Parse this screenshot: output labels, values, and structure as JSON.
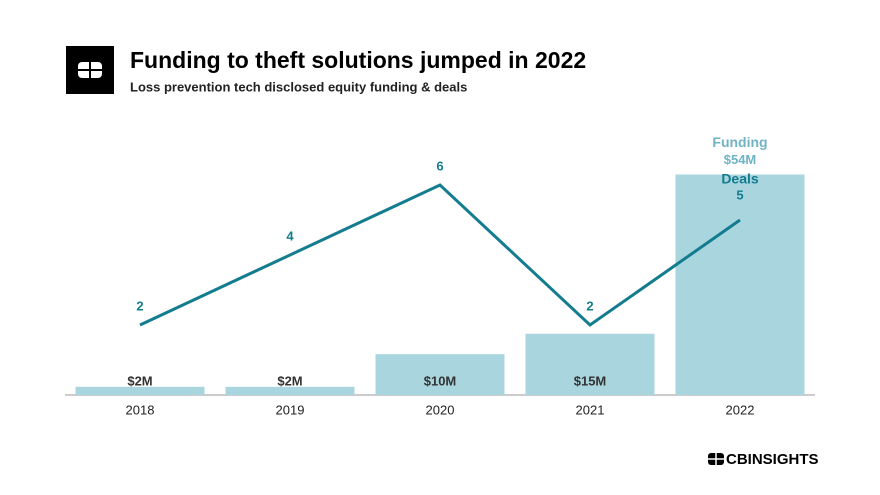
{
  "chart_data": {
    "type": "bar-line",
    "title": "Funding to theft solutions jumped in 2022",
    "subtitle": "Loss prevention tech disclosed equity funding & deals",
    "categories": [
      "2018",
      "2019",
      "2020",
      "2021",
      "2022"
    ],
    "series": [
      {
        "name": "Funding",
        "type": "bar",
        "color": "#a9d6de",
        "values": [
          2,
          2,
          10,
          15,
          54
        ],
        "value_labels": [
          "$2M",
          "$2M",
          "$10M",
          "$15M",
          "$54M"
        ]
      },
      {
        "name": "Deals",
        "type": "line",
        "axis": "y2",
        "color": "#137c8f",
        "values": [
          2,
          4,
          6,
          2,
          5
        ]
      }
    ],
    "ylim": [
      0,
      60
    ],
    "y2lim": [
      0,
      7
    ],
    "logo_text": "CBINSIGHTS"
  }
}
